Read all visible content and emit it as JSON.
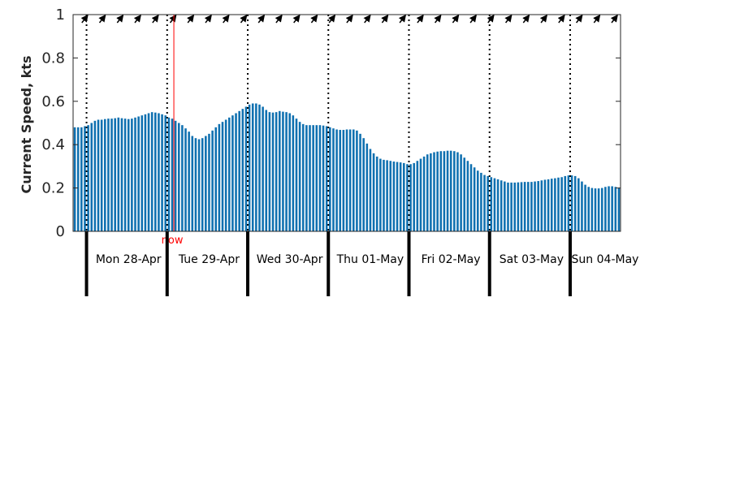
{
  "chart_data": {
    "type": "bar",
    "ylabel": "Current Speed, kts",
    "ylim": [
      0,
      1
    ],
    "yticks": [
      "0",
      "0.2",
      "0.4",
      "0.6",
      "0.8",
      "1"
    ],
    "ytick_values": [
      0,
      0.2,
      0.4,
      0.6,
      0.8,
      1
    ],
    "grid": false,
    "series_color": "#0f70b0",
    "day_lines_style": "dotted",
    "now_label": "now",
    "now_color": "#ff0000",
    "now_hour": 26.5,
    "start_offset_hours": 7,
    "hours_step": 1,
    "days": [
      {
        "label": "Mon 28-Apr",
        "start_hour": 7
      },
      {
        "label": "Tue 29-Apr",
        "start_hour": 31
      },
      {
        "label": "Wed 30-Apr",
        "start_hour": 55
      },
      {
        "label": "Thu 01-May",
        "start_hour": 79
      },
      {
        "label": "Fri 02-May",
        "start_hour": 103
      },
      {
        "label": "Sat 03-May",
        "start_hour": 127
      },
      {
        "label": "Sun 04-May",
        "start_hour": 151
      }
    ],
    "values": [
      0.48,
      0.48,
      0.48,
      0.485,
      0.49,
      0.5,
      0.51,
      0.515,
      0.515,
      0.518,
      0.52,
      0.52,
      0.522,
      0.525,
      0.522,
      0.52,
      0.518,
      0.52,
      0.525,
      0.53,
      0.535,
      0.54,
      0.545,
      0.55,
      0.548,
      0.545,
      0.54,
      0.535,
      0.525,
      0.52,
      0.51,
      0.5,
      0.49,
      0.475,
      0.46,
      0.44,
      0.43,
      0.425,
      0.43,
      0.44,
      0.45,
      0.465,
      0.48,
      0.495,
      0.505,
      0.515,
      0.525,
      0.535,
      0.545,
      0.555,
      0.565,
      0.575,
      0.585,
      0.59,
      0.59,
      0.585,
      0.575,
      0.56,
      0.55,
      0.548,
      0.55,
      0.555,
      0.552,
      0.55,
      0.545,
      0.535,
      0.52,
      0.505,
      0.495,
      0.49,
      0.49,
      0.49,
      0.49,
      0.49,
      0.488,
      0.485,
      0.48,
      0.475,
      0.47,
      0.468,
      0.468,
      0.47,
      0.47,
      0.47,
      0.465,
      0.45,
      0.43,
      0.405,
      0.38,
      0.36,
      0.345,
      0.335,
      0.33,
      0.328,
      0.325,
      0.322,
      0.32,
      0.318,
      0.315,
      0.31,
      0.31,
      0.315,
      0.325,
      0.335,
      0.345,
      0.355,
      0.36,
      0.365,
      0.368,
      0.37,
      0.37,
      0.372,
      0.372,
      0.37,
      0.365,
      0.355,
      0.34,
      0.325,
      0.31,
      0.295,
      0.28,
      0.27,
      0.26,
      0.255,
      0.25,
      0.245,
      0.24,
      0.235,
      0.23,
      0.225,
      0.225,
      0.225,
      0.226,
      0.227,
      0.228,
      0.228,
      0.228,
      0.23,
      0.232,
      0.235,
      0.238,
      0.24,
      0.243,
      0.245,
      0.248,
      0.25,
      0.255,
      0.258,
      0.258,
      0.255,
      0.245,
      0.23,
      0.215,
      0.205,
      0.2,
      0.198,
      0.198,
      0.2,
      0.205,
      0.208,
      0.208,
      0.205,
      0.2
    ],
    "direction_arrows_count": 31
  }
}
